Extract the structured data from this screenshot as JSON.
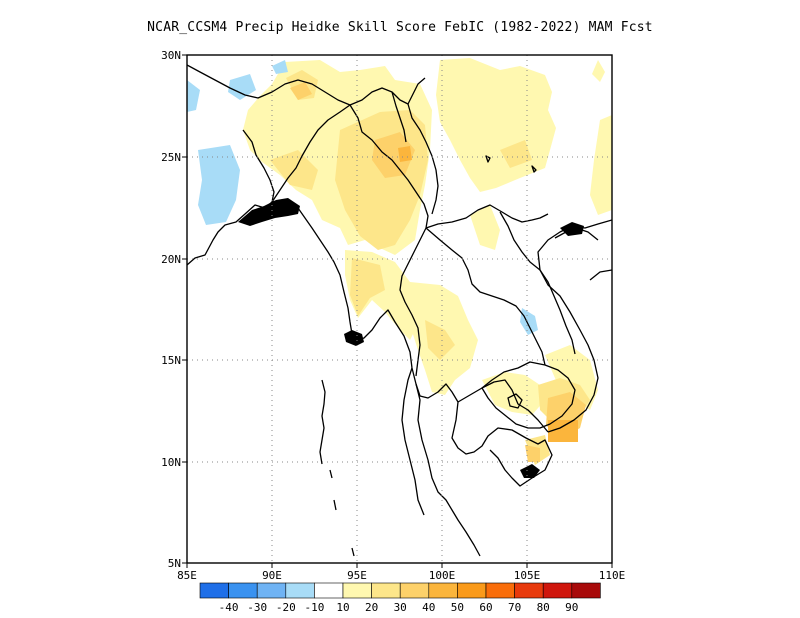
{
  "title": "NCAR_CCSM4 Precip Heidke Skill Score FebIC (1982-2022) MAM Fcst",
  "map": {
    "lat_ticks": [
      "30N",
      "25N",
      "20N",
      "15N",
      "10N",
      "5N"
    ],
    "lon_ticks": [
      "85E",
      "90E",
      "95E",
      "100E",
      "105E",
      "110E"
    ],
    "lat_range": [
      5,
      30
    ],
    "lon_range": [
      85,
      110
    ],
    "grid": "dotted"
  },
  "colorbar": {
    "labels": [
      "-40",
      "-30",
      "-20",
      "-10",
      "10",
      "20",
      "30",
      "40",
      "50",
      "60",
      "70",
      "80",
      "90"
    ],
    "colors": [
      "#1f6fe8",
      "#3a92f0",
      "#6fb3f4",
      "#a8dcf7",
      "#ffffff",
      "#fff8b0",
      "#fde68a",
      "#fdd16a",
      "#fbb53c",
      "#fa9a1a",
      "#f96d0a",
      "#e83a0c",
      "#cf160c",
      "#a80a0a"
    ]
  }
}
